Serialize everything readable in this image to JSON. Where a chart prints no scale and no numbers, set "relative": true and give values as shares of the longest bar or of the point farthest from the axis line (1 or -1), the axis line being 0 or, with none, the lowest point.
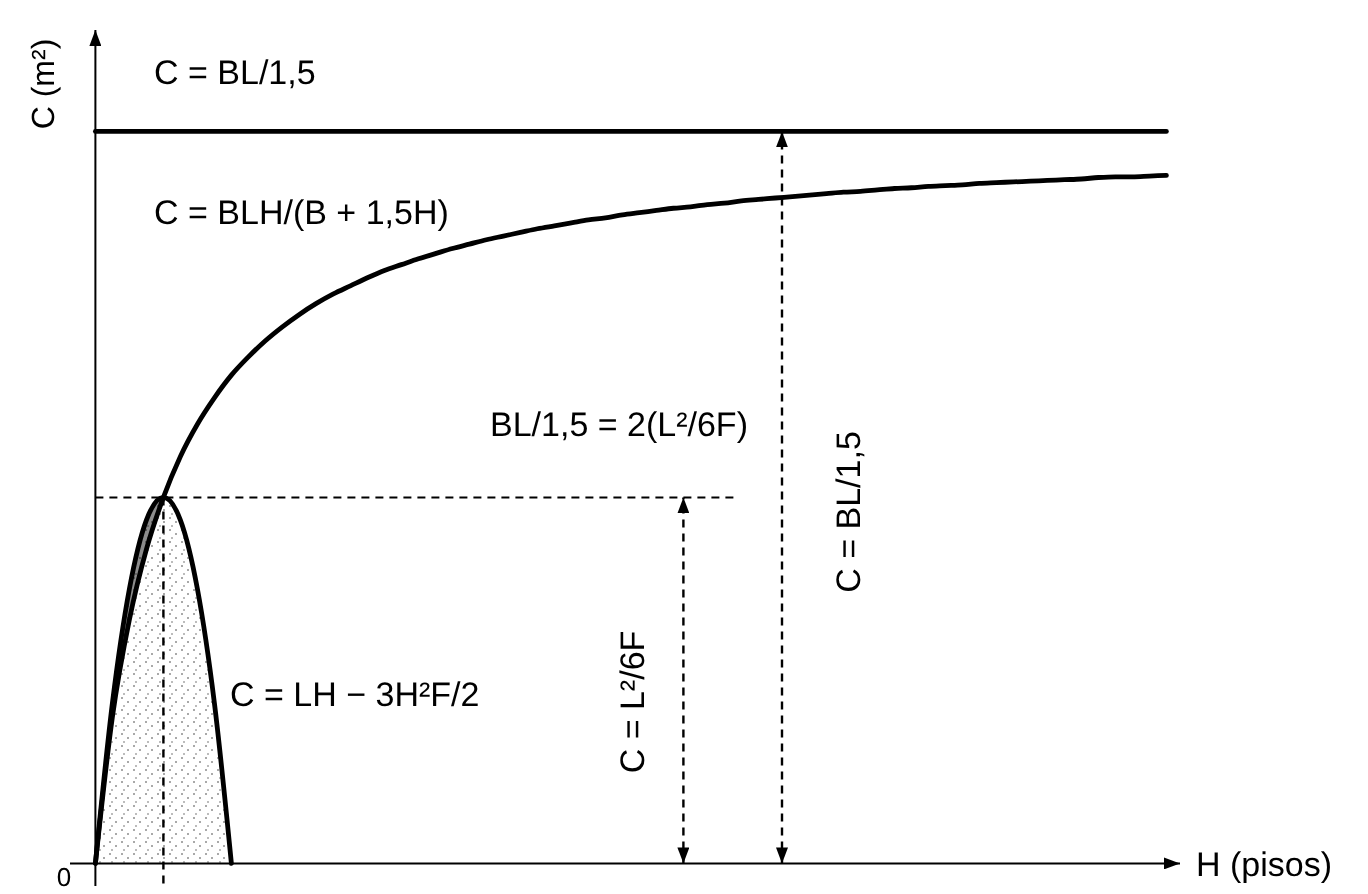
{
  "chart_data": {
    "type": "line",
    "relative": true,
    "xlabel": "H (pisos)",
    "ylabel": "C (m²)",
    "categories": [
      null,
      null,
      null,
      null,
      null,
      null,
      null,
      null,
      null,
      null,
      null,
      null,
      null,
      null,
      null,
      null,
      null,
      null,
      null,
      null,
      null,
      null,
      null,
      null,
      null,
      null,
      null,
      null,
      null,
      null,
      null,
      null,
      null,
      null,
      null,
      null,
      null,
      null,
      null,
      null,
      null,
      null,
      null,
      null,
      null,
      null,
      null,
      null,
      null,
      null,
      null,
      null,
      null,
      null,
      null,
      null,
      null,
      null,
      null,
      null,
      null,
      null,
      null,
      null
    ],
    "series": [
      {
        "name": "C = BL/1,5",
        "color": "#000000",
        "values": [
          1,
          1,
          1,
          1,
          1,
          1,
          1,
          1,
          1,
          1,
          1,
          1,
          1,
          1,
          1,
          1,
          1,
          1,
          1,
          1,
          1,
          1,
          1,
          1,
          1,
          1,
          1,
          1,
          1,
          1,
          1,
          1,
          1,
          1,
          1,
          1,
          1,
          1,
          1,
          1,
          1,
          1,
          1,
          1,
          1,
          1,
          1,
          1,
          1,
          1,
          1,
          1,
          1,
          1,
          1,
          1,
          1,
          1,
          1,
          1,
          1,
          1,
          1,
          1
        ]
      },
      {
        "name": "C = BLH/(B + 1,5H)",
        "color": "#000000",
        "values": [
          0,
          0.2,
          0.333,
          0.429,
          0.5,
          0.556,
          0.6,
          0.636,
          0.667,
          0.692,
          0.714,
          0.733,
          0.75,
          0.765,
          0.778,
          0.789,
          0.8,
          0.81,
          0.818,
          0.826,
          0.833,
          0.84,
          0.846,
          0.852,
          0.857,
          0.862,
          0.867,
          0.871,
          0.875,
          0.879,
          0.882,
          0.886,
          0.889,
          0.892,
          0.895,
          0.897,
          0.9,
          0.902,
          0.905,
          0.907,
          0.909,
          0.911,
          0.913,
          0.915,
          0.917,
          0.918,
          0.92,
          0.922,
          0.923,
          0.925,
          0.926,
          0.927,
          0.929,
          0.93,
          0.931,
          0.932,
          0.933,
          0.934,
          0.935,
          0.937,
          0.938,
          0.938,
          0.939,
          0.94
        ],
        "lower": [
          0,
          0.2,
          0.333,
          0.429,
          0.5,
          null,
          null,
          null,
          null,
          null,
          null,
          null,
          null,
          null,
          null,
          null,
          null,
          null,
          null,
          null,
          null,
          null,
          null,
          null,
          null,
          null,
          null,
          null,
          null,
          null,
          null,
          null,
          null,
          null,
          null,
          null,
          null,
          null,
          null,
          null,
          null,
          null,
          null,
          null,
          null,
          null,
          null,
          null,
          null,
          null,
          null,
          null,
          null,
          null,
          null,
          null,
          null,
          null,
          null,
          null,
          null,
          null,
          null,
          null
        ],
        "upper": [
          0,
          0.219,
          0.375,
          0.469,
          0.5,
          null,
          null,
          null,
          null,
          null,
          null,
          null,
          null,
          null,
          null,
          null,
          null,
          null,
          null,
          null,
          null,
          null,
          null,
          null,
          null,
          null,
          null,
          null,
          null,
          null,
          null,
          null,
          null,
          null,
          null,
          null,
          null,
          null,
          null,
          null,
          null,
          null,
          null,
          null,
          null,
          null,
          null,
          null,
          null,
          null,
          null,
          null,
          null,
          null,
          null,
          null,
          null,
          null,
          null,
          null,
          null,
          null,
          null,
          null
        ]
      },
      {
        "name": "C = LH − 3H²F/2",
        "type": "area",
        "color": "#000000",
        "values": [
          0,
          0.219,
          0.375,
          0.469,
          0.5,
          0.469,
          0.375,
          0.219,
          0,
          null,
          null,
          null,
          null,
          null,
          null,
          null,
          null,
          null,
          null,
          null,
          null,
          null,
          null,
          null,
          null,
          null,
          null,
          null,
          null,
          null,
          null,
          null,
          null,
          null,
          null,
          null,
          null,
          null,
          null,
          null,
          null,
          null,
          null,
          null,
          null,
          null,
          null,
          null,
          null,
          null,
          null,
          null,
          null,
          null,
          null,
          null,
          null,
          null,
          null,
          null,
          null,
          null,
          null,
          null
        ]
      }
    ],
    "ref_lines": [
      {
        "axis": "y",
        "value": 0.5,
        "line_style": "dashed"
      }
    ],
    "annotations": [
      "BL/1,5 = 2(L²/6F)",
      "C = L²/6F",
      "C = BL/1,5",
      "0"
    ]
  }
}
